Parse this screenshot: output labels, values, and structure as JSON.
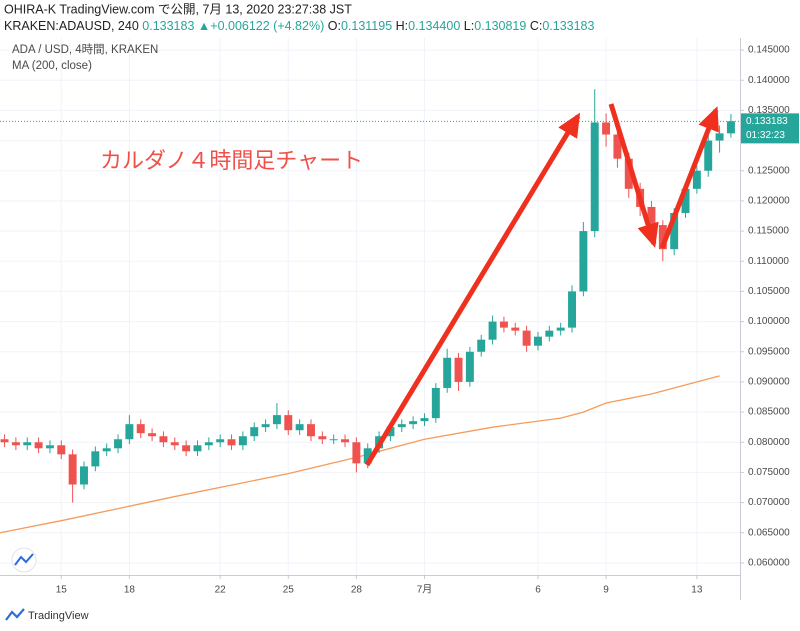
{
  "header": {
    "publisher": "OHIRA-K TradingView.com で公開, 7月 13, 2020 23:27:38 JST",
    "symbol": "KRAKEN:ADAUSD, 240",
    "last": "0.133183",
    "change": "+0.006122 (+4.82%)",
    "ohlc": [
      {
        "label": "O:",
        "value": "0.131195"
      },
      {
        "label": "H:",
        "value": "0.134400"
      },
      {
        "label": "L:",
        "value": "0.130819"
      },
      {
        "label": "C:",
        "value": "0.133183"
      }
    ]
  },
  "footer": {
    "brand": "TradingView"
  },
  "chart_data": {
    "type": "candlestick",
    "pair_label": "ADA / USD, 4時間, KRAKEN",
    "annotation": "カルダノ４時間足チャート",
    "up_color": "#26a69a",
    "down_color": "#ef5350",
    "grid": true,
    "x": [
      12.5,
      13,
      13.5,
      14,
      14.5,
      15,
      15.5,
      16,
      16.5,
      17,
      17.5,
      18,
      18.5,
      19,
      19.5,
      20,
      20.5,
      21,
      21.5,
      22,
      22.5,
      23,
      23.5,
      24,
      24.5,
      25,
      25.5,
      26,
      26.5,
      27,
      27.5,
      28,
      28.5,
      29,
      29.5,
      30,
      30.5,
      31,
      31.5,
      32,
      32.5,
      33,
      33.5,
      34,
      34.5,
      35,
      35.5,
      36,
      36.5,
      37,
      37.5,
      38,
      38.5,
      39,
      39.5,
      40,
      40.5,
      41,
      41.5,
      42,
      42.5,
      43,
      43.5,
      44,
      44.5
    ],
    "open": [
      0.0805,
      0.08,
      0.0795,
      0.08,
      0.079,
      0.0795,
      0.078,
      0.073,
      0.076,
      0.0785,
      0.079,
      0.0805,
      0.083,
      0.0815,
      0.081,
      0.08,
      0.0795,
      0.0785,
      0.0795,
      0.08,
      0.0805,
      0.0795,
      0.081,
      0.0825,
      0.083,
      0.0845,
      0.082,
      0.083,
      0.081,
      0.0805,
      0.0805,
      0.08,
      0.0765,
      0.079,
      0.081,
      0.0825,
      0.083,
      0.0835,
      0.084,
      0.089,
      0.094,
      0.09,
      0.095,
      0.097,
      0.1,
      0.099,
      0.0985,
      0.096,
      0.0975,
      0.0985,
      0.099,
      0.105,
      0.115,
      0.133,
      0.131,
      0.127,
      0.122,
      0.119,
      0.116,
      0.112,
      0.118,
      0.122,
      0.125,
      0.13,
      0.1312
    ],
    "high": [
      0.0813,
      0.0808,
      0.0808,
      0.0808,
      0.0803,
      0.0803,
      0.0788,
      0.0768,
      0.0793,
      0.0798,
      0.0813,
      0.0845,
      0.0838,
      0.0823,
      0.0818,
      0.0808,
      0.0803,
      0.0803,
      0.0808,
      0.0813,
      0.0813,
      0.0818,
      0.0833,
      0.0838,
      0.0865,
      0.0853,
      0.0838,
      0.0838,
      0.0818,
      0.0813,
      0.0813,
      0.0808,
      0.0798,
      0.0818,
      0.0833,
      0.0838,
      0.0843,
      0.0848,
      0.0898,
      0.0955,
      0.0948,
      0.0958,
      0.0978,
      0.101,
      0.1008,
      0.0998,
      0.0993,
      0.0983,
      0.0993,
      0.0998,
      0.106,
      0.1165,
      0.1385,
      0.1345,
      0.1318,
      0.128,
      0.123,
      0.12,
      0.1168,
      0.1188,
      0.1228,
      0.1258,
      0.131,
      0.1325,
      0.1344
    ],
    "low": [
      0.0792,
      0.0787,
      0.0787,
      0.0782,
      0.0782,
      0.0772,
      0.07,
      0.0722,
      0.0752,
      0.0777,
      0.0782,
      0.0797,
      0.0807,
      0.0802,
      0.0792,
      0.0787,
      0.0777,
      0.0777,
      0.0787,
      0.0792,
      0.0787,
      0.0787,
      0.0802,
      0.0817,
      0.0822,
      0.0812,
      0.0812,
      0.0802,
      0.0797,
      0.0797,
      0.0792,
      0.075,
      0.0757,
      0.0782,
      0.0802,
      0.0817,
      0.0822,
      0.0827,
      0.0832,
      0.0882,
      0.0885,
      0.0892,
      0.0942,
      0.0962,
      0.0982,
      0.0977,
      0.095,
      0.0952,
      0.0967,
      0.0977,
      0.0982,
      0.1042,
      0.114,
      0.129,
      0.1255,
      0.1205,
      0.1175,
      0.115,
      0.11,
      0.111,
      0.1172,
      0.1212,
      0.124,
      0.128,
      0.1305
    ],
    "close": [
      0.08,
      0.0795,
      0.08,
      0.079,
      0.0795,
      0.078,
      0.073,
      0.076,
      0.0785,
      0.079,
      0.0805,
      0.083,
      0.0815,
      0.081,
      0.08,
      0.0795,
      0.0785,
      0.0795,
      0.08,
      0.0805,
      0.0795,
      0.081,
      0.0825,
      0.083,
      0.0845,
      0.082,
      0.083,
      0.081,
      0.0805,
      0.0805,
      0.08,
      0.0765,
      0.079,
      0.081,
      0.0825,
      0.083,
      0.0835,
      0.084,
      0.089,
      0.094,
      0.09,
      0.095,
      0.097,
      0.1,
      0.099,
      0.0985,
      0.096,
      0.0975,
      0.0985,
      0.099,
      0.105,
      0.115,
      0.133,
      0.131,
      0.127,
      0.122,
      0.119,
      0.116,
      0.112,
      0.118,
      0.122,
      0.125,
      0.13,
      0.1312,
      0.1332
    ],
    "ma": {
      "name": "MA (200, close)",
      "color": "#f59b5b",
      "x": [
        12.3,
        15,
        20,
        25,
        28,
        31,
        34,
        37,
        38,
        39,
        41,
        44
      ],
      "values": [
        0.065,
        0.067,
        0.071,
        0.0748,
        0.0775,
        0.0805,
        0.0825,
        0.084,
        0.085,
        0.0865,
        0.088,
        0.091
      ]
    },
    "last_price": {
      "value": 0.133183,
      "label": "0.133183"
    },
    "countdown": "01:32:23",
    "xlim": [
      12.3,
      44.9
    ],
    "ylim": [
      0.058,
      0.147
    ],
    "xticks": [
      15,
      18,
      22,
      25,
      28,
      {
        "value": 31,
        "label": "7月"
      },
      {
        "value": 36,
        "label": "6"
      },
      {
        "value": 39,
        "label": "9"
      },
      {
        "value": 43,
        "label": "13"
      }
    ],
    "yticks": [
      {
        "value": 0.06,
        "label": "0.060000"
      },
      {
        "value": 0.065,
        "label": "0.065000"
      },
      {
        "value": 0.07,
        "label": "0.070000"
      },
      {
        "value": 0.075,
        "label": "0.075000"
      },
      {
        "value": 0.08,
        "label": "0.080000"
      },
      {
        "value": 0.085,
        "label": "0.085000"
      },
      {
        "value": 0.09,
        "label": "0.090000"
      },
      {
        "value": 0.095,
        "label": "0.095000"
      },
      {
        "value": 0.1,
        "label": "0.100000"
      },
      {
        "value": 0.105,
        "label": "0.105000"
      },
      {
        "value": 0.11,
        "label": "0.110000"
      },
      {
        "value": 0.115,
        "label": "0.115000"
      },
      {
        "value": 0.12,
        "label": "0.120000"
      },
      {
        "value": 0.125,
        "label": "0.125000"
      },
      {
        "value": 0.13,
        "label": "0.130000"
      },
      {
        "value": 0.135,
        "label": "0.135000"
      },
      {
        "value": 0.14,
        "label": "0.140000"
      },
      {
        "value": 0.145,
        "label": "0.145000"
      }
    ]
  }
}
